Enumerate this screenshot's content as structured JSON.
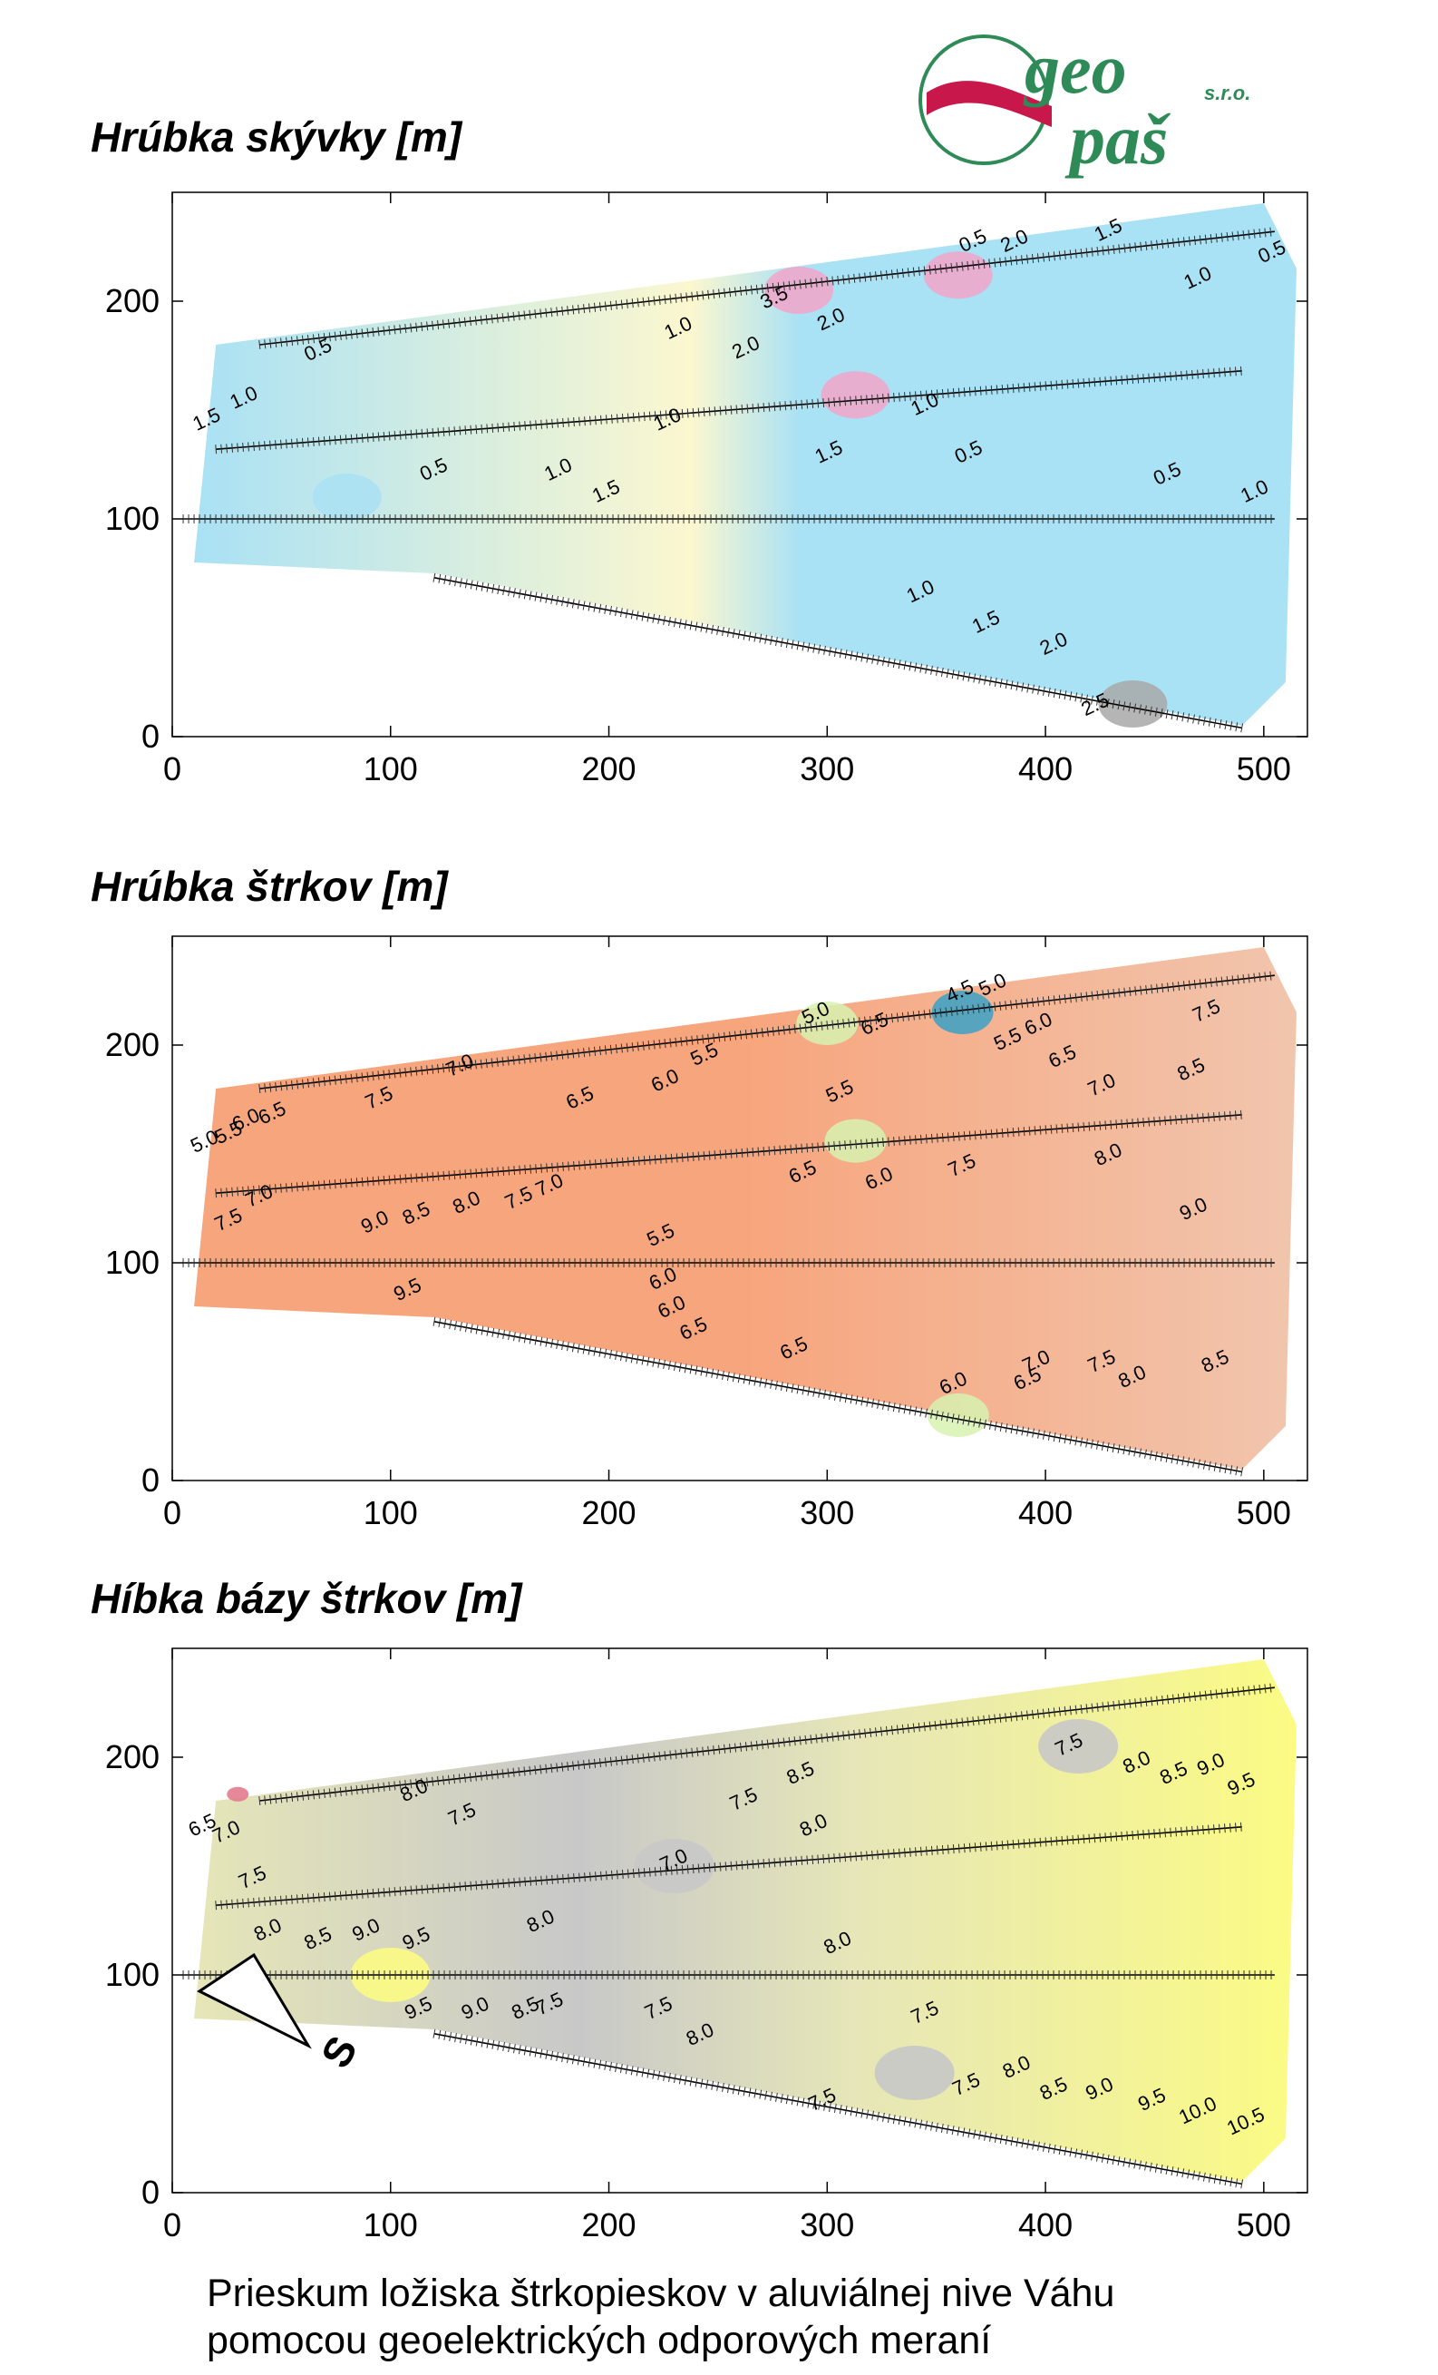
{
  "logo": {
    "line1": "geo",
    "line2": "paš",
    "suffix": "s.r.o.",
    "colors": {
      "green": "#2e8b57",
      "ribbon": "#c8174a"
    }
  },
  "caption": {
    "line1": "Prieskum ložiska štrkopieskov v aluviálnej nive Váhu",
    "line2": "pomocou geoelektrických odporových meraní"
  },
  "north_arrow": {
    "label": "S"
  },
  "chart_data": [
    {
      "type": "contour",
      "title": "Hrúbka skývky [m]",
      "xlim": [
        0,
        520
      ],
      "ylim": [
        0,
        250
      ],
      "x_ticks": [
        0,
        100,
        200,
        300,
        400,
        500
      ],
      "y_ticks": [
        0,
        100,
        200
      ],
      "contour_levels": [
        0.5,
        1.0,
        1.5,
        2.0,
        2.5,
        3.0,
        3.5
      ],
      "colors": {
        "low": "#a9e1f5",
        "mid": "#fbf7cf",
        "high": "#a8a8a8",
        "peak": "#f2a5c9"
      },
      "profile_lines": [
        {
          "from": [
            40,
            180
          ],
          "to": [
            505,
            232
          ]
        },
        {
          "from": [
            20,
            132
          ],
          "to": [
            490,
            168
          ]
        },
        {
          "from": [
            5,
            100
          ],
          "to": [
            505,
            100
          ]
        },
        {
          "from": [
            120,
            73
          ],
          "to": [
            490,
            4
          ]
        }
      ],
      "contour_labels": [
        {
          "text": "1.5",
          "x": 430,
          "y": 230
        },
        {
          "text": "2.0",
          "x": 387,
          "y": 225
        },
        {
          "text": "0.5",
          "x": 368,
          "y": 225
        },
        {
          "text": "0.5",
          "x": 505,
          "y": 220
        },
        {
          "text": "1.0",
          "x": 471,
          "y": 208
        },
        {
          "text": "3.5",
          "x": 277,
          "y": 199
        },
        {
          "text": "2.0",
          "x": 303,
          "y": 189
        },
        {
          "text": "2.0",
          "x": 264,
          "y": 176
        },
        {
          "text": "1.0",
          "x": 233,
          "y": 185
        },
        {
          "text": "0.5",
          "x": 68,
          "y": 175
        },
        {
          "text": "1.0",
          "x": 34,
          "y": 153
        },
        {
          "text": "1.5",
          "x": 17,
          "y": 143
        },
        {
          "text": "1.0",
          "x": 228,
          "y": 143
        },
        {
          "text": "1.0",
          "x": 346,
          "y": 150
        },
        {
          "text": "1.5",
          "x": 302,
          "y": 128
        },
        {
          "text": "0.5",
          "x": 366,
          "y": 128
        },
        {
          "text": "1.0",
          "x": 178,
          "y": 120
        },
        {
          "text": "0.5",
          "x": 121,
          "y": 120
        },
        {
          "text": "1.5",
          "x": 200,
          "y": 110
        },
        {
          "text": "0.5",
          "x": 457,
          "y": 118
        },
        {
          "text": "1.0",
          "x": 497,
          "y": 110
        },
        {
          "text": "1.0",
          "x": 344,
          "y": 64
        },
        {
          "text": "1.5",
          "x": 374,
          "y": 50
        },
        {
          "text": "2.0",
          "x": 405,
          "y": 40
        },
        {
          "text": "2.5",
          "x": 424,
          "y": 12
        }
      ]
    },
    {
      "type": "contour",
      "title": "Hrúbka štrkov [m]",
      "xlim": [
        0,
        520
      ],
      "ylim": [
        0,
        250
      ],
      "x_ticks": [
        0,
        100,
        200,
        300,
        400,
        500
      ],
      "y_ticks": [
        0,
        100,
        200
      ],
      "contour_levels": [
        4.5,
        5.0,
        5.5,
        6.0,
        6.5,
        7.0,
        7.5,
        8.0,
        8.5,
        9.0,
        9.5
      ],
      "colors": {
        "low": "#d7f2b0",
        "mid": "#f7a57d",
        "high": "#f1c5ad",
        "min": "#3aa1c6"
      },
      "profile_lines": [
        {
          "from": [
            40,
            180
          ],
          "to": [
            505,
            232
          ]
        },
        {
          "from": [
            20,
            132
          ],
          "to": [
            490,
            168
          ]
        },
        {
          "from": [
            5,
            100
          ],
          "to": [
            505,
            100
          ]
        },
        {
          "from": [
            120,
            73
          ],
          "to": [
            490,
            4
          ]
        }
      ],
      "contour_labels": [
        {
          "text": "5.0",
          "x": 377,
          "y": 225
        },
        {
          "text": "4.5",
          "x": 362,
          "y": 222
        },
        {
          "text": "7.5",
          "x": 475,
          "y": 213
        },
        {
          "text": "5.0",
          "x": 296,
          "y": 212
        },
        {
          "text": "6.5",
          "x": 323,
          "y": 207
        },
        {
          "text": "6.0",
          "x": 398,
          "y": 207
        },
        {
          "text": "5.5",
          "x": 384,
          "y": 200
        },
        {
          "text": "6.5",
          "x": 409,
          "y": 192
        },
        {
          "text": "5.5",
          "x": 245,
          "y": 193
        },
        {
          "text": "7.0",
          "x": 133,
          "y": 188
        },
        {
          "text": "8.5",
          "x": 468,
          "y": 186
        },
        {
          "text": "6.0",
          "x": 227,
          "y": 181
        },
        {
          "text": "5.5",
          "x": 307,
          "y": 176
        },
        {
          "text": "7.0",
          "x": 427,
          "y": 179
        },
        {
          "text": "7.5",
          "x": 96,
          "y": 173
        },
        {
          "text": "6.5",
          "x": 188,
          "y": 173
        },
        {
          "text": "6.5",
          "x": 47,
          "y": 166
        },
        {
          "text": "6.0",
          "x": 35,
          "y": 163
        },
        {
          "text": "5.5",
          "x": 27,
          "y": 157
        },
        {
          "text": "5.0",
          "x": 16,
          "y": 153
        },
        {
          "text": "8.0",
          "x": 430,
          "y": 147
        },
        {
          "text": "6.5",
          "x": 290,
          "y": 139
        },
        {
          "text": "6.0",
          "x": 325,
          "y": 136
        },
        {
          "text": "7.5",
          "x": 363,
          "y": 142
        },
        {
          "text": "7.0",
          "x": 174,
          "y": 133
        },
        {
          "text": "7.5",
          "x": 160,
          "y": 127
        },
        {
          "text": "8.0",
          "x": 136,
          "y": 125
        },
        {
          "text": "8.5",
          "x": 113,
          "y": 120
        },
        {
          "text": "9.0",
          "x": 94,
          "y": 116
        },
        {
          "text": "7.0",
          "x": 41,
          "y": 128
        },
        {
          "text": "7.5",
          "x": 27,
          "y": 117
        },
        {
          "text": "9.0",
          "x": 469,
          "y": 122
        },
        {
          "text": "5.5",
          "x": 225,
          "y": 110
        },
        {
          "text": "6.0",
          "x": 226,
          "y": 90
        },
        {
          "text": "9.5",
          "x": 109,
          "y": 85
        },
        {
          "text": "6.0",
          "x": 230,
          "y": 77
        },
        {
          "text": "6.5",
          "x": 240,
          "y": 67
        },
        {
          "text": "6.5",
          "x": 286,
          "y": 58
        },
        {
          "text": "7.0",
          "x": 397,
          "y": 52
        },
        {
          "text": "7.5",
          "x": 427,
          "y": 52
        },
        {
          "text": "8.0",
          "x": 441,
          "y": 45
        },
        {
          "text": "8.5",
          "x": 479,
          "y": 52
        },
        {
          "text": "6.0",
          "x": 359,
          "y": 42
        },
        {
          "text": "6.5",
          "x": 393,
          "y": 44
        }
      ]
    },
    {
      "type": "contour",
      "title": "Híbka bázy štrkov [m]",
      "xlim": [
        0,
        520
      ],
      "ylim": [
        0,
        250
      ],
      "x_ticks": [
        0,
        100,
        200,
        300,
        400,
        500
      ],
      "y_ticks": [
        0,
        100,
        200
      ],
      "contour_levels": [
        6.5,
        7.0,
        7.5,
        8.0,
        8.5,
        9.0,
        9.5,
        10.0,
        10.5
      ],
      "colors": {
        "low": "#c8c8c8",
        "mid": "#e6e6b8",
        "high": "#fbfb84",
        "min": "#e37b8e"
      },
      "profile_lines": [
        {
          "from": [
            40,
            180
          ],
          "to": [
            505,
            232
          ]
        },
        {
          "from": [
            20,
            132
          ],
          "to": [
            490,
            168
          ]
        },
        {
          "from": [
            5,
            100
          ],
          "to": [
            505,
            100
          ]
        },
        {
          "from": [
            120,
            73
          ],
          "to": [
            490,
            4
          ]
        }
      ],
      "contour_labels": [
        {
          "text": "7.5",
          "x": 412,
          "y": 203
        },
        {
          "text": "8.0",
          "x": 443,
          "y": 195
        },
        {
          "text": "8.5",
          "x": 460,
          "y": 190
        },
        {
          "text": "9.0",
          "x": 477,
          "y": 194
        },
        {
          "text": "9.5",
          "x": 491,
          "y": 185
        },
        {
          "text": "8.5",
          "x": 289,
          "y": 190
        },
        {
          "text": "8.0",
          "x": 112,
          "y": 182
        },
        {
          "text": "7.5",
          "x": 134,
          "y": 171
        },
        {
          "text": "7.5",
          "x": 263,
          "y": 178
        },
        {
          "text": "8.0",
          "x": 295,
          "y": 166
        },
        {
          "text": "6.5",
          "x": 15,
          "y": 166
        },
        {
          "text": "7.0",
          "x": 26,
          "y": 163
        },
        {
          "text": "7.5",
          "x": 38,
          "y": 142
        },
        {
          "text": "7.0",
          "x": 231,
          "y": 150
        },
        {
          "text": "8.0",
          "x": 45,
          "y": 118
        },
        {
          "text": "8.5",
          "x": 68,
          "y": 114
        },
        {
          "text": "9.0",
          "x": 90,
          "y": 118
        },
        {
          "text": "9.5",
          "x": 113,
          "y": 114
        },
        {
          "text": "8.0",
          "x": 170,
          "y": 122
        },
        {
          "text": "8.0",
          "x": 306,
          "y": 112
        },
        {
          "text": "9.5",
          "x": 114,
          "y": 82
        },
        {
          "text": "9.0",
          "x": 140,
          "y": 82
        },
        {
          "text": "8.5",
          "x": 163,
          "y": 82
        },
        {
          "text": "7.5",
          "x": 174,
          "y": 84
        },
        {
          "text": "7.5",
          "x": 224,
          "y": 82
        },
        {
          "text": "7.5",
          "x": 346,
          "y": 80
        },
        {
          "text": "8.0",
          "x": 243,
          "y": 70
        },
        {
          "text": "7.5",
          "x": 299,
          "y": 40
        },
        {
          "text": "7.5",
          "x": 365,
          "y": 47
        },
        {
          "text": "8.0",
          "x": 388,
          "y": 55
        },
        {
          "text": "8.5",
          "x": 405,
          "y": 45
        },
        {
          "text": "9.0",
          "x": 426,
          "y": 45
        },
        {
          "text": "9.5",
          "x": 450,
          "y": 40
        },
        {
          "text": "10.0",
          "x": 471,
          "y": 35
        },
        {
          "text": "10.5",
          "x": 493,
          "y": 30
        }
      ]
    }
  ]
}
